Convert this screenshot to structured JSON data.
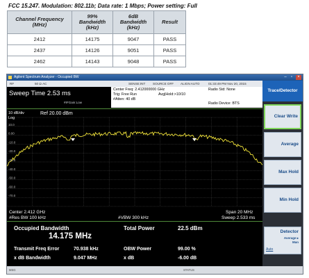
{
  "report": {
    "caption": "FCC 15.247. Modulation: 802.11b; Data rate: 1 Mbps; Power setting: Full",
    "columns": [
      [
        "Channel Frequency",
        "(MHz)"
      ],
      [
        "99%",
        "Bandwidth",
        "(kHz)"
      ],
      [
        "6dB",
        "Bandwidth",
        "(kHz)"
      ],
      [
        "Result"
      ]
    ],
    "rows": [
      [
        "2412",
        "14175",
        "9047",
        "PASS"
      ],
      [
        "2437",
        "14126",
        "9051",
        "PASS"
      ],
      [
        "2462",
        "14143",
        "9048",
        "PASS"
      ]
    ]
  },
  "window": {
    "title": "Agilent Spectrum Analyzer - Occupied BW",
    "header_items": [
      "RF",
      "50 Ω AC",
      "SENSE:INT",
      "SOURCE OFF",
      "ALIGN AUTO",
      "01:33:49 PM Nov 20, 2015"
    ],
    "sweep_time": "Sweep Time 2.53 ms",
    "if_gain": "#IFGain:Low",
    "center_freq": "Center Freq: 2.412000000 GHz",
    "trig": "Trig: Free Run",
    "avg_hold": "Avg|Hold:>10/10",
    "atten": "#Atten: 40 dB",
    "radio_std": "Radio Std: None",
    "radio_device": "Radio Device: BTS"
  },
  "plot": {
    "scale": "10 dB/div",
    "log": "Log",
    "ref": "Ref 20.00 dBm",
    "ytick_labels": [
      "10.0",
      "0.00",
      "-10.0",
      "-20.0",
      "-30.0",
      "-40.0",
      "-50.0",
      "-60.0",
      "-70.0"
    ],
    "center": "Center 2.412 GHz",
    "res_bw": "#Res BW  100 kHz",
    "vbw": "#VBW  300 kHz",
    "span": "Span 20 MHz",
    "sweep": "Sweep  2.533 ms"
  },
  "measurement": {
    "occ_bw_label": "Occupied Bandwidth",
    "occ_bw_value": "14.175 MHz",
    "total_power_label": "Total Power",
    "total_power_value": "22.5 dBm",
    "tx_freq_err_label": "Transmit Freq Error",
    "tx_freq_err_value": "70.938 kHz",
    "obw_power_label": "OBW Power",
    "obw_power_value": "99.00 %",
    "xdb_bw_label": "x dB Bandwidth",
    "xdb_bw_value": "9.047 MHz",
    "xdb_label": "x dB",
    "xdb_value": "-6.00 dB"
  },
  "panel": {
    "title": "Trace/Detector",
    "buttons": [
      "Clear Write",
      "Average",
      "Max Hold",
      "Min Hold"
    ],
    "detector_label": "Detector",
    "detector_sub1": "Average ▸",
    "detector_sub2": "Man",
    "detector_auto": "Auto"
  },
  "status_bar": {
    "msg": "MSG",
    "status": "STATUS"
  },
  "colors": {
    "trace": "#f2e43a",
    "grid": "#5a5a5a",
    "panel_title": "#1d63b8",
    "selected_border": "#7fd65a"
  }
}
